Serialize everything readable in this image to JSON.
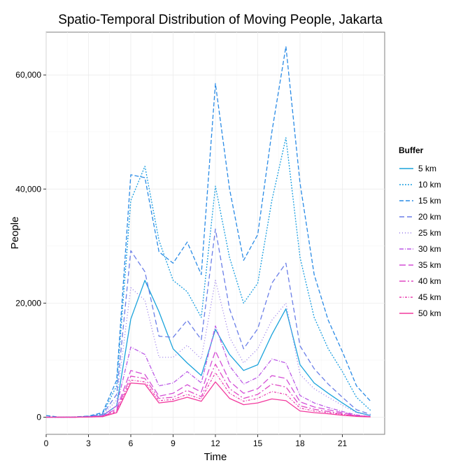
{
  "chart_data": {
    "type": "line",
    "title": "Spatio-Temporal Distribution of Moving People, Jakarta",
    "xlabel": "Time",
    "ylabel": "People",
    "xlim": [
      0,
      24
    ],
    "ylim": [
      -3000,
      67500
    ],
    "x_ticks": [
      0,
      3,
      6,
      9,
      12,
      15,
      18,
      21
    ],
    "y_ticks": [
      0,
      20000,
      40000,
      60000
    ],
    "y_tick_labels": [
      "0",
      "20,000",
      "40,000",
      "60,000"
    ],
    "grid": true,
    "legend_position": "right",
    "legend_title": "Buffer",
    "x": [
      0,
      1,
      2,
      3,
      4,
      5,
      6,
      7,
      8,
      9,
      10,
      11,
      12,
      13,
      14,
      15,
      16,
      17,
      18,
      19,
      20,
      21,
      22,
      23
    ],
    "series": [
      {
        "name": "5 km",
        "color": "#1aa3dc",
        "dash": "",
        "values": [
          0,
          0,
          0,
          50,
          300,
          2000,
          17200,
          24000,
          18500,
          12000,
          9500,
          7300,
          15400,
          11000,
          8200,
          9200,
          14500,
          19000,
          9200,
          6000,
          4200,
          2500,
          900,
          300
        ]
      },
      {
        "name": "10 km",
        "color": "#1a9ee0",
        "dash": "2,2",
        "values": [
          0,
          0,
          50,
          150,
          600,
          5500,
          38000,
          44000,
          31000,
          24000,
          22000,
          17500,
          40500,
          28000,
          20000,
          23500,
          38000,
          49000,
          28000,
          17500,
          12000,
          8000,
          3500,
          1200
        ]
      },
      {
        "name": "15 km",
        "color": "#2a8be6",
        "dash": "6,3",
        "values": [
          300,
          0,
          50,
          200,
          800,
          6500,
          42500,
          42000,
          29000,
          27000,
          30700,
          25000,
          58500,
          40000,
          27500,
          32000,
          50000,
          65000,
          41000,
          25000,
          17000,
          11500,
          5500,
          2800
        ]
      },
      {
        "name": "20 km",
        "color": "#6b7fe8",
        "dash": "7,4",
        "values": [
          0,
          0,
          0,
          150,
          500,
          4000,
          29200,
          25500,
          14200,
          14000,
          17000,
          13600,
          33000,
          19000,
          12000,
          15500,
          23500,
          27000,
          12500,
          8500,
          5800,
          3500,
          1300,
          500
        ]
      },
      {
        "name": "25 km",
        "color": "#9678e8",
        "dash": "1,3",
        "values": [
          0,
          0,
          0,
          100,
          400,
          3000,
          22700,
          20500,
          10500,
          10500,
          12600,
          10200,
          24000,
          14000,
          9500,
          12000,
          17000,
          20000,
          7500,
          5000,
          3500,
          2100,
          800,
          300
        ]
      },
      {
        "name": "30 km",
        "color": "#bb5ae6",
        "dash": "6,2,1,2",
        "values": [
          0,
          0,
          0,
          80,
          250,
          2000,
          12300,
          11000,
          5500,
          6000,
          8000,
          6000,
          16000,
          9000,
          5800,
          7000,
          10200,
          9500,
          3800,
          2500,
          1700,
          1000,
          400,
          100
        ]
      },
      {
        "name": "35 km",
        "color": "#d44fd6",
        "dash": "9,4",
        "values": [
          0,
          0,
          0,
          60,
          200,
          1500,
          8200,
          7500,
          3700,
          4200,
          5700,
          4400,
          11600,
          6300,
          4200,
          5000,
          7300,
          6800,
          2700,
          1800,
          1300,
          800,
          300,
          100
        ]
      },
      {
        "name": "40 km",
        "color": "#e048c4",
        "dash": "9,3,2,3",
        "values": [
          0,
          0,
          0,
          50,
          150,
          1200,
          7200,
          6800,
          3300,
          3500,
          4700,
          3600,
          9300,
          5000,
          3300,
          4000,
          5800,
          5300,
          2000,
          1400,
          1000,
          600,
          250,
          100
        ]
      },
      {
        "name": "45 km",
        "color": "#ea42b0",
        "dash": "3,2,1,2",
        "values": [
          0,
          0,
          0,
          40,
          120,
          1000,
          6500,
          6200,
          2900,
          3100,
          4000,
          3200,
          7800,
          4200,
          2800,
          3300,
          4500,
          4000,
          1600,
          1100,
          800,
          500,
          200,
          80
        ]
      },
      {
        "name": "50 km",
        "color": "#f23a9e",
        "dash": "",
        "values": [
          0,
          0,
          0,
          30,
          100,
          800,
          6000,
          5800,
          2500,
          2800,
          3500,
          2800,
          6200,
          3300,
          2200,
          2500,
          3200,
          2900,
          1100,
          800,
          600,
          350,
          150,
          50
        ]
      }
    ]
  }
}
